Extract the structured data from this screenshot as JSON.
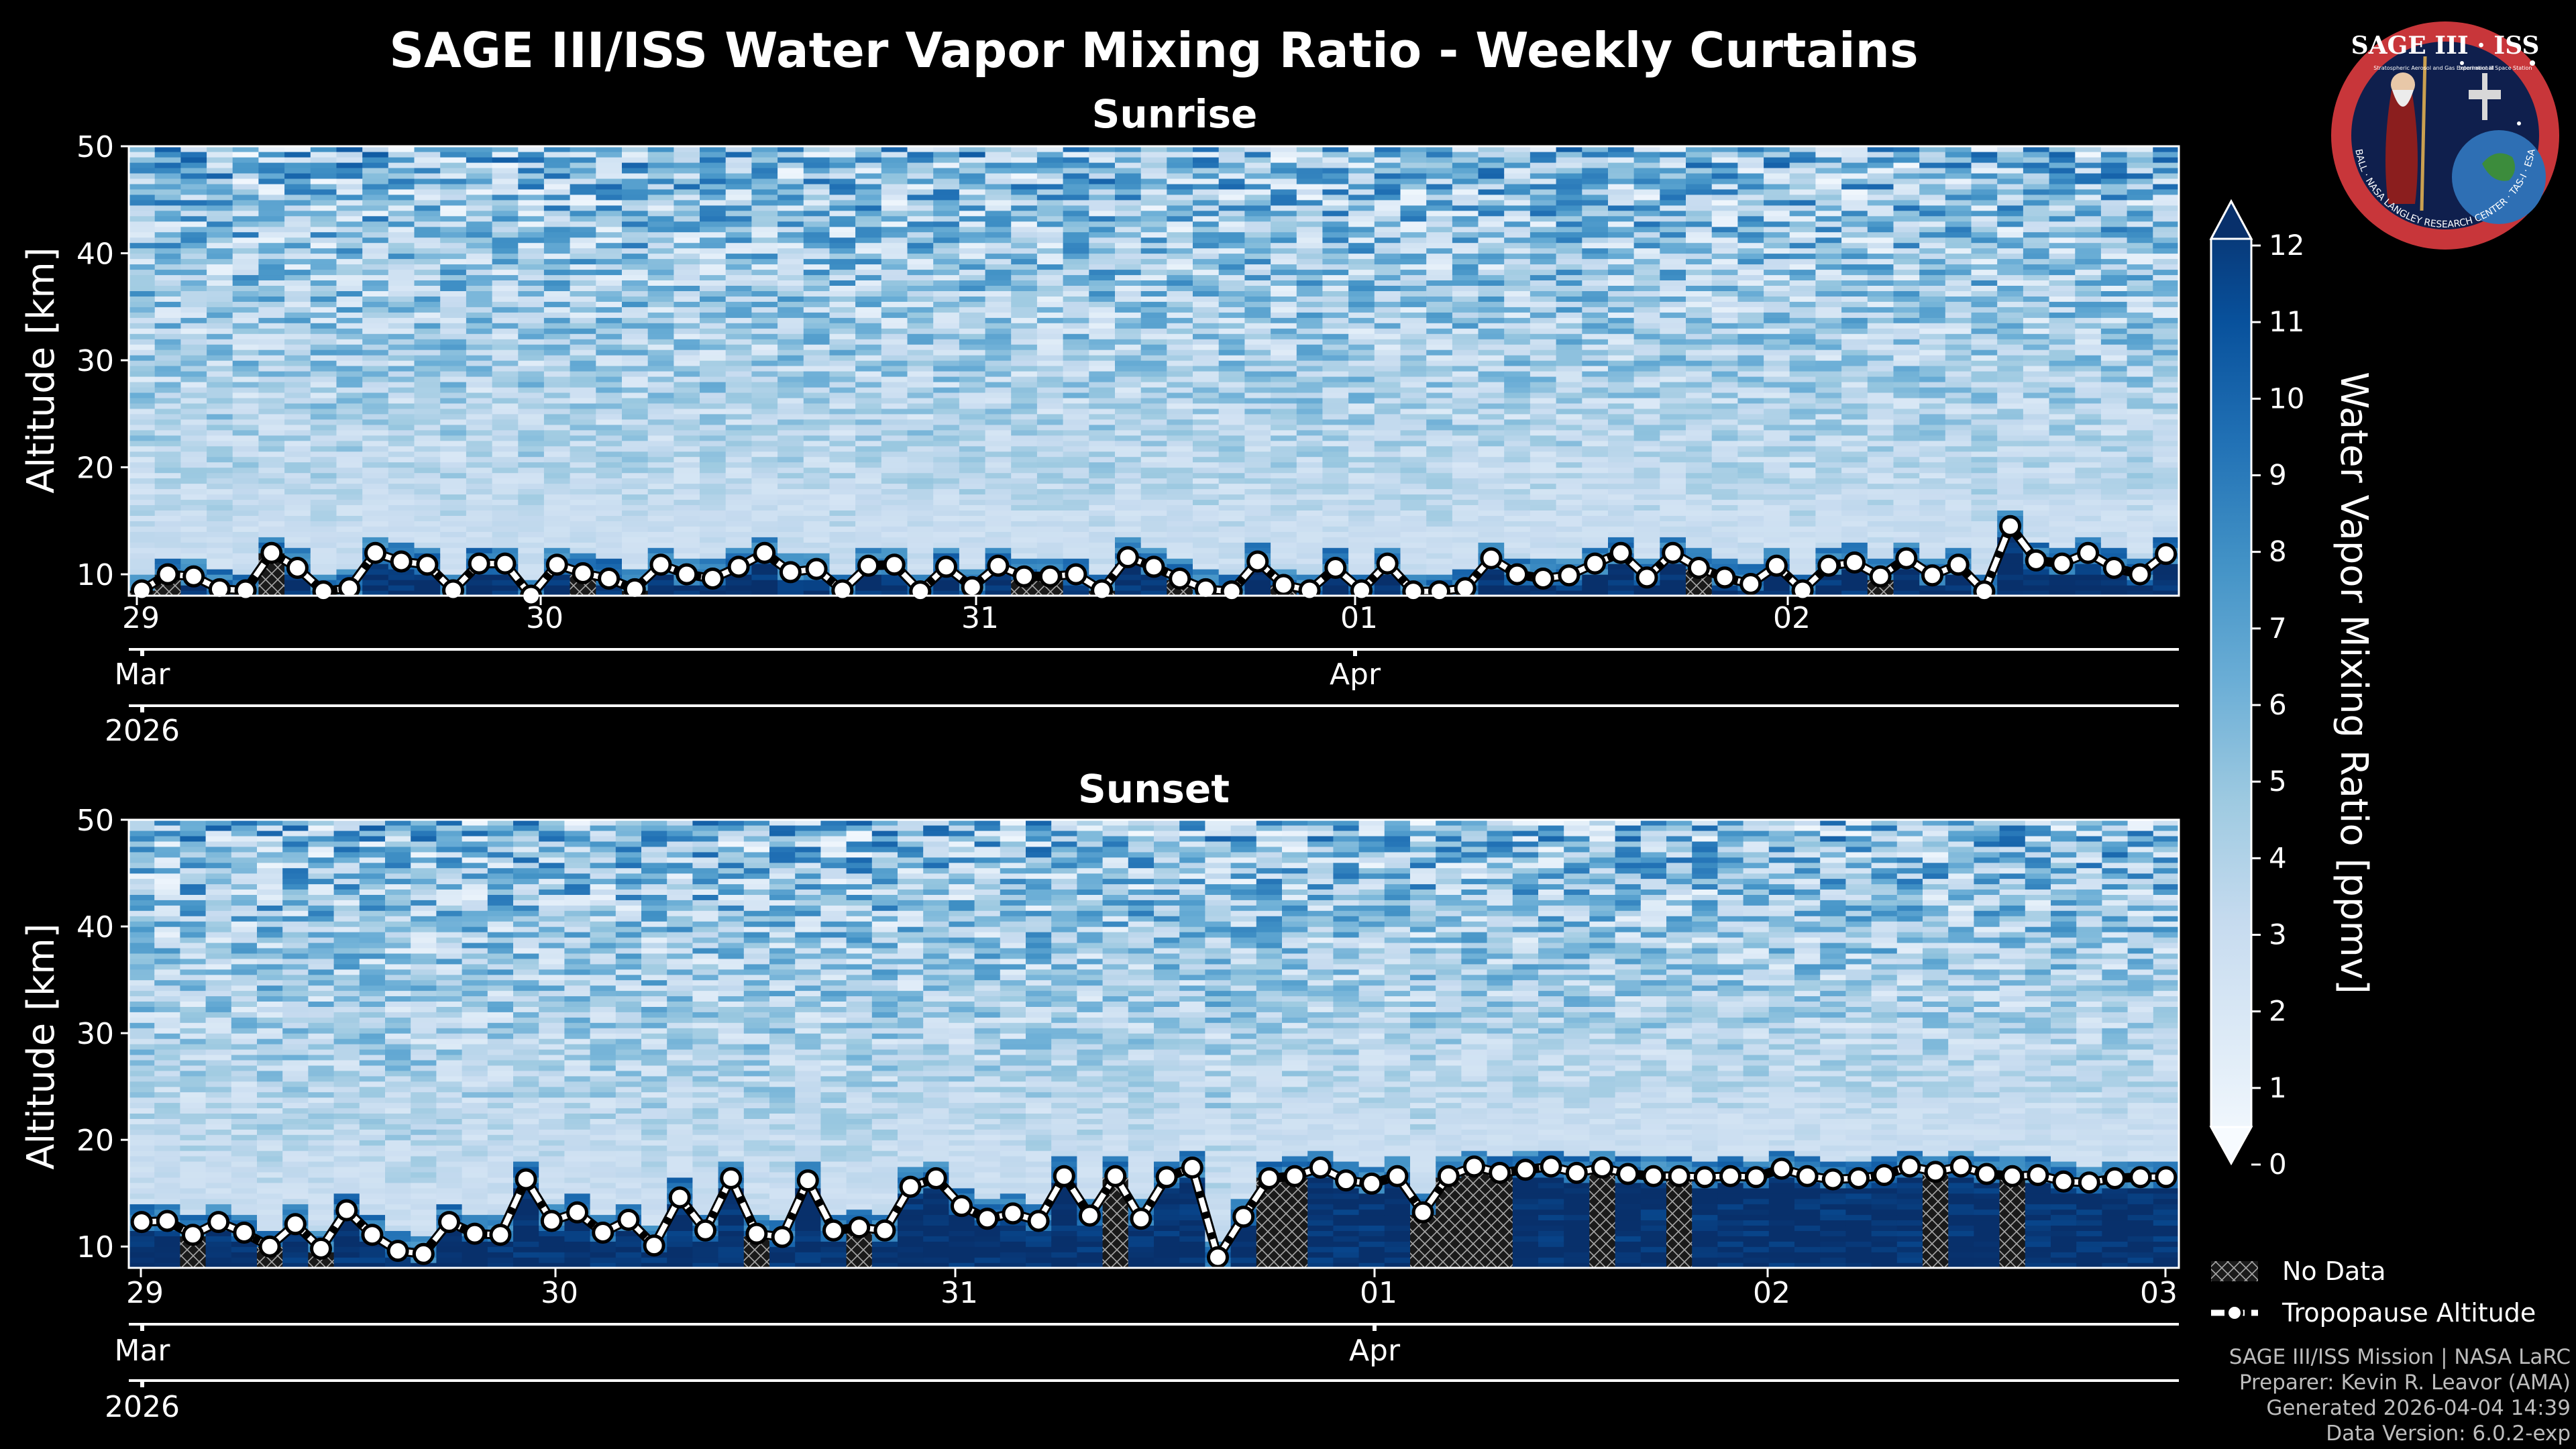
{
  "title": "SAGE III/ISS Water Vapor Mixing Ratio - Weekly Curtains",
  "colorbar": {
    "label": "Water Vapor Mixing Ratio [ppmv]",
    "ticks": [
      "0",
      "1",
      "2",
      "3",
      "4",
      "5",
      "6",
      "7",
      "8",
      "9",
      "10",
      "11",
      "12"
    ]
  },
  "legend": {
    "no_data": "No Data",
    "tropopause": "Tropopause Altitude"
  },
  "logo": {
    "text": "SAGE III · ISS",
    "ring": "BALL · NASA LANGLEY RESEARCH CENTER · TAS-I · ESA",
    "tagline": "Stratospheric Aerosol and Gas Experiment III",
    "station": "International Space Station"
  },
  "credits": {
    "line1": "SAGE III/ISS Mission | NASA LaRC",
    "line2": "Preparer: Kevin R. Leavor (AMA)",
    "line3": "Generated 2026-04-04 14:39",
    "line4": "Data Version: 6.0.2-exp"
  },
  "colors": {
    "background": "#000000",
    "cmap": [
      "#f7fbff",
      "#deebf7",
      "#c6dbef",
      "#9ecae1",
      "#6baed6",
      "#4292c6",
      "#2171b5",
      "#08519c",
      "#08306b"
    ],
    "tropopause": "#ffffff"
  },
  "chart_data": [
    {
      "type": "heatmap",
      "title": "Sunrise",
      "ylabel": "Altitude [km]",
      "ylim": [
        8,
        50
      ],
      "yticks": [
        "10",
        "20",
        "30",
        "40",
        "50"
      ],
      "xlim": [
        "2026-03-29",
        "2026-04-03"
      ],
      "xticks_day": [
        "29",
        "30",
        "31",
        "01",
        "02"
      ],
      "xticks_month": [
        "Mar",
        "Apr"
      ],
      "xticks_year": [
        "2026"
      ],
      "clim": [
        0,
        12
      ],
      "tropopause_km": [
        8.5,
        10.0,
        9.8,
        8.6,
        8.5,
        12.0,
        10.6,
        8.4,
        8.7,
        12.0,
        11.2,
        10.9,
        8.5,
        11.0,
        11.0,
        8.0,
        10.9,
        10.1,
        9.6,
        8.6,
        10.9,
        10.0,
        9.6,
        10.7,
        12.0,
        10.2,
        10.5,
        8.5,
        10.8,
        10.9,
        8.4,
        10.7,
        8.8,
        10.8,
        9.8,
        9.8,
        10.0,
        8.5,
        11.6,
        10.7,
        9.6,
        8.6,
        8.4,
        11.2,
        9.0,
        8.5,
        10.6,
        8.5,
        11.0,
        8.4,
        8.4,
        8.7,
        11.5,
        10.0,
        9.6,
        9.9,
        11.0,
        12.0,
        9.7,
        12.0,
        10.6,
        9.7,
        9.1,
        10.8,
        8.5,
        10.8,
        11.1,
        9.8,
        11.5,
        9.9,
        10.9,
        8.4,
        14.5,
        11.3,
        11.0,
        12.0,
        10.6,
        10.0,
        11.9
      ]
    },
    {
      "type": "heatmap",
      "title": "Sunset",
      "ylabel": "Altitude [km]",
      "ylim": [
        8,
        50
      ],
      "yticks": [
        "10",
        "20",
        "30",
        "40",
        "50"
      ],
      "xlim": [
        "2026-03-29",
        "2026-04-03"
      ],
      "xticks_day": [
        "29",
        "30",
        "31",
        "01",
        "02",
        "03"
      ],
      "xticks_month": [
        "Mar",
        "Apr"
      ],
      "xticks_year": [
        "2026"
      ],
      "clim": [
        0,
        12
      ],
      "tropopause_km": [
        12.3,
        12.4,
        11.1,
        12.3,
        11.3,
        10.0,
        12.1,
        9.8,
        13.4,
        11.1,
        9.6,
        9.3,
        12.3,
        11.2,
        11.1,
        16.3,
        12.4,
        13.2,
        11.3,
        12.5,
        10.1,
        14.6,
        11.5,
        16.4,
        11.2,
        10.9,
        16.2,
        11.5,
        11.8,
        11.5,
        15.6,
        16.4,
        13.8,
        12.6,
        13.1,
        12.4,
        16.6,
        12.9,
        16.6,
        12.6,
        16.5,
        17.4,
        9.0,
        12.8,
        16.4,
        16.6,
        17.4,
        16.2,
        15.9,
        16.6,
        13.2,
        16.6,
        17.5,
        16.9,
        17.2,
        17.5,
        16.9,
        17.4,
        16.8,
        16.6,
        16.6,
        16.5,
        16.6,
        16.5,
        17.3,
        16.6,
        16.3,
        16.4,
        16.7,
        17.5,
        17.0,
        17.5,
        16.8,
        16.6,
        16.7,
        16.1,
        16.0,
        16.4,
        16.5,
        16.5
      ]
    }
  ]
}
